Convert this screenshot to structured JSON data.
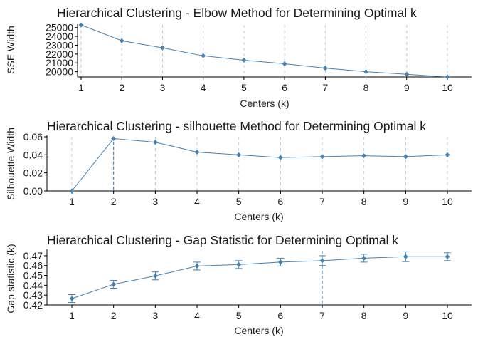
{
  "chart_data": [
    {
      "type": "line",
      "title": "Hierarchical Clustering - Elbow Method for Determining Optimal k",
      "xlabel": "Centers (k)",
      "ylabel": "SSE Width",
      "x": [
        1,
        2,
        3,
        4,
        5,
        6,
        7,
        8,
        9,
        10
      ],
      "values": [
        25300,
        23500,
        22700,
        21800,
        21300,
        20900,
        20400,
        20000,
        19700,
        19400
      ],
      "ylim": [
        19400,
        25300
      ],
      "yticks": [
        20000,
        21000,
        22000,
        23000,
        24000,
        25000
      ],
      "grid": "dashed vertical lines at each k",
      "color": "#4682B4"
    },
    {
      "type": "line",
      "title": "Hierarchical Clustering - silhouette Method for Determining Optimal k",
      "xlabel": "Centers (k)",
      "ylabel": "Silhouette Width",
      "x": [
        1,
        2,
        3,
        4,
        5,
        6,
        7,
        8,
        9,
        10
      ],
      "values": [
        0.0,
        0.058,
        0.054,
        0.043,
        0.04,
        0.037,
        0.038,
        0.039,
        0.038,
        0.04
      ],
      "ylim": [
        0,
        0.06
      ],
      "yticks": [
        0.0,
        0.02,
        0.04,
        0.06
      ],
      "ytick_decimals": 2,
      "optimal_k": 2,
      "grid": "dashed vertical lines at each k",
      "color": "#4682B4"
    },
    {
      "type": "line",
      "title": "Hierarchical Clustering - Gap Statistic for Determining Optimal k",
      "xlabel": "Centers (k)",
      "ylabel": "Gap statistic (k)",
      "x": [
        1,
        2,
        3,
        4,
        5,
        6,
        7,
        8,
        9,
        10
      ],
      "values": [
        0.4265,
        0.441,
        0.4495,
        0.4595,
        0.461,
        0.4635,
        0.465,
        0.4675,
        0.469,
        0.469
      ],
      "error": [
        0.004,
        0.004,
        0.004,
        0.004,
        0.004,
        0.004,
        0.005,
        0.004,
        0.005,
        0.004
      ],
      "ylim": [
        0.42,
        0.475
      ],
      "yticks": [
        0.42,
        0.43,
        0.44,
        0.45,
        0.46,
        0.47
      ],
      "ytick_decimals": 2,
      "optimal_k": 7,
      "grid": "none",
      "color": "#4682B4"
    }
  ]
}
